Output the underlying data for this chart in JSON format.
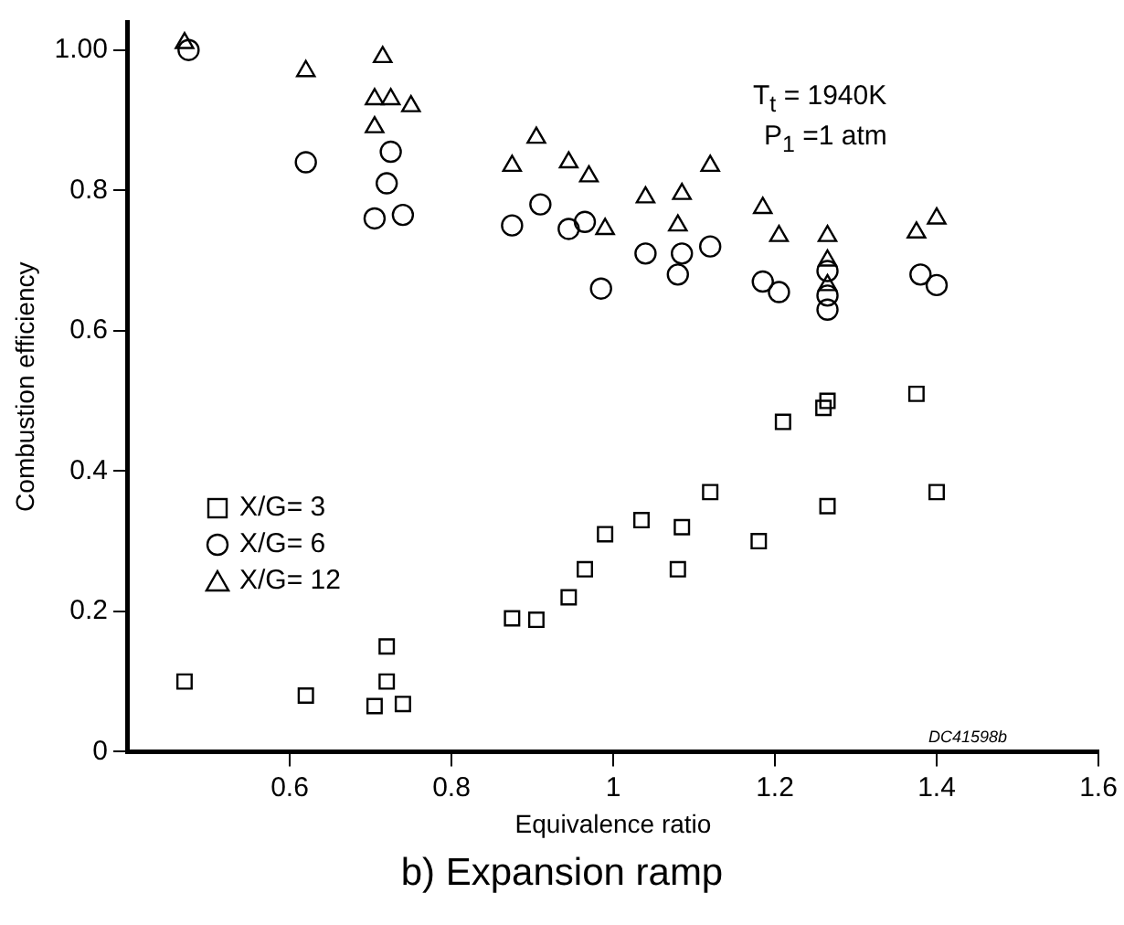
{
  "chart_data": {
    "type": "scatter",
    "title": "b) Expansion ramp",
    "xlabel": "Equivalence ratio",
    "ylabel": "Combustion efficiency",
    "annotations": [
      "T$_{t}$ = 1940K",
      "P$_{1}$ =1 atm",
      "DC41598b"
    ],
    "xlim": [
      0.4,
      1.6
    ],
    "xticks": [
      0.6,
      0.8,
      1,
      1.2,
      1.4,
      1.6
    ],
    "ylim": [
      0,
      1.04
    ],
    "yticks": [
      0,
      0.2,
      0.4,
      0.6,
      0.8,
      {
        "value": 1,
        "label": "1.00"
      }
    ],
    "grid": false,
    "legend": "left",
    "series": [
      {
        "name": "X/G= 3",
        "color": "#000000",
        "marker": "square",
        "x": [
          0.47,
          0.62,
          0.705,
          0.72,
          0.72,
          0.74,
          0.875,
          0.905,
          0.945,
          0.965,
          0.99,
          1.035,
          1.085,
          1.08,
          1.12,
          1.18,
          1.21,
          1.265,
          1.26,
          1.265,
          1.375,
          1.4
        ],
        "values": [
          0.1,
          0.08,
          0.065,
          0.1,
          0.15,
          0.068,
          0.19,
          0.188,
          0.22,
          0.26,
          0.31,
          0.33,
          0.32,
          0.26,
          0.37,
          0.3,
          0.47,
          0.5,
          0.49,
          0.35,
          0.51,
          0.37
        ]
      },
      {
        "name": "X/G= 6",
        "color": "#000000",
        "marker": "circle",
        "x": [
          0.475,
          0.62,
          0.725,
          0.72,
          0.705,
          0.74,
          0.875,
          0.91,
          0.945,
          0.965,
          0.985,
          1.04,
          1.08,
          1.085,
          1.12,
          1.185,
          1.205,
          1.265,
          1.265,
          1.265,
          1.38,
          1.4
        ],
        "values": [
          1.0,
          0.84,
          0.855,
          0.81,
          0.76,
          0.765,
          0.75,
          0.78,
          0.745,
          0.755,
          0.66,
          0.71,
          0.68,
          0.71,
          0.72,
          0.67,
          0.655,
          0.685,
          0.65,
          0.63,
          0.68,
          0.665
        ]
      },
      {
        "name": "X/G= 12",
        "color": "#000000",
        "marker": "triangle",
        "x": [
          0.47,
          0.62,
          0.715,
          0.705,
          0.725,
          0.75,
          0.705,
          0.875,
          0.905,
          0.945,
          0.97,
          0.99,
          1.04,
          1.085,
          1.08,
          1.12,
          1.185,
          1.205,
          1.265,
          1.265,
          1.265,
          1.375,
          1.4
        ],
        "values": [
          1.01,
          0.97,
          0.99,
          0.93,
          0.93,
          0.92,
          0.89,
          0.835,
          0.875,
          0.84,
          0.82,
          0.745,
          0.79,
          0.795,
          0.75,
          0.835,
          0.775,
          0.735,
          0.735,
          0.7,
          0.665,
          0.74,
          0.76
        ]
      }
    ]
  }
}
